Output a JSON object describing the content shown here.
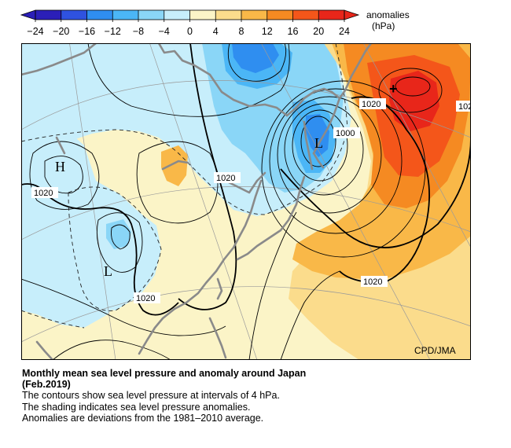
{
  "colorbar": {
    "title": "anomalies",
    "unit": "(hPa)",
    "ticks": [
      "−24",
      "−20",
      "−16",
      "−12",
      "−8",
      "−4",
      "0",
      "4",
      "8",
      "12",
      "16",
      "20",
      "24"
    ],
    "colors": [
      "#2b1fb8",
      "#2f52e0",
      "#2f8ef0",
      "#4bb6f6",
      "#8ad6f7",
      "#c7eefb",
      "#fbf4c7",
      "#fbdc8c",
      "#f9b848",
      "#f58a22",
      "#f4561a",
      "#e8261a"
    ]
  },
  "map": {
    "labels": {
      "l_kamchatka": "L",
      "l_china": "L",
      "h_west": "H",
      "plus_mark": "+",
      "c1020_pacific": "1020",
      "c1020_ne": "1020",
      "c1020_edge": "102",
      "c1000": "1000",
      "c1020_mid": "1020",
      "c1020_west": "1020",
      "c1020_south": "1020",
      "credit": "CPD/JMA"
    },
    "colors": {
      "land_outline": "#8a8a8a",
      "contour": "#000000",
      "neutral_fill": "#fbf4c7"
    }
  },
  "caption": {
    "title_line1": "Monthly mean sea level pressure and anomaly around Japan",
    "title_line2": "(Feb.2019)",
    "line1": "The contours show sea level pressure at intervals of 4 hPa.",
    "line2": "The shading indicates sea level pressure anomalies.",
    "line3": "Anomalies are deviations from the 1981–2010 average."
  }
}
